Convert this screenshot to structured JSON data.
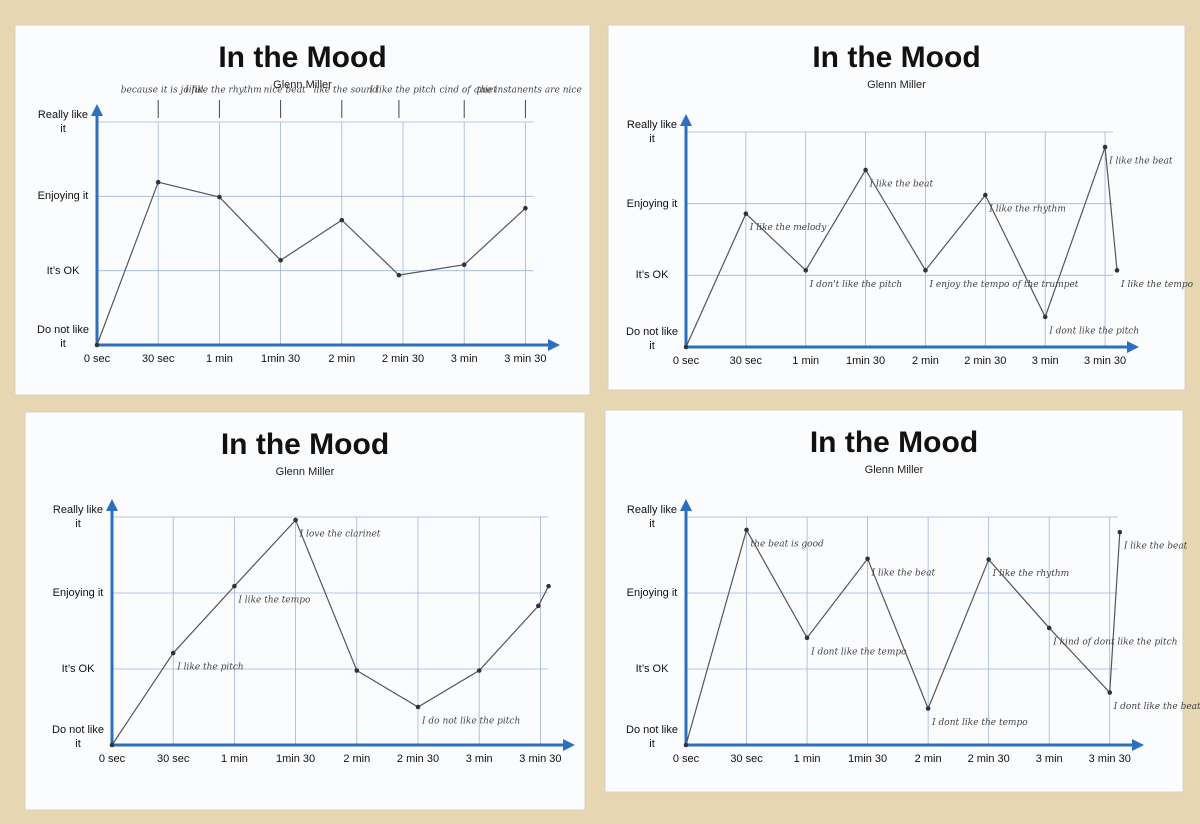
{
  "chart_data": [
    {
      "type": "line",
      "title": "In the Mood",
      "subtitle": "Glenn Miller",
      "color": "#555555",
      "grid": true,
      "x": [
        0,
        30,
        60,
        90,
        120,
        148,
        180,
        210
      ],
      "values": [
        0,
        2.19,
        1.99,
        1.14,
        1.68,
        0.94,
        1.08,
        1.84
      ],
      "notes": [
        null,
        "because it is joiful",
        "I like the rhythm",
        "nice beat",
        "like the sound",
        "I like the pitch",
        "cind of quiet",
        "the instanents are nice"
      ],
      "xlim": [
        0,
        225
      ],
      "xticks": [
        {
          "value": 0,
          "label": "0 sec"
        },
        {
          "value": 30,
          "label": "30 sec"
        },
        {
          "value": 60,
          "label": "1 min"
        },
        {
          "value": 90,
          "label": "1min 30"
        },
        {
          "value": 120,
          "label": "2 min"
        },
        {
          "value": 150,
          "label": "2 min 30"
        },
        {
          "value": 180,
          "label": "3 min"
        },
        {
          "value": 210,
          "label": "3 min 30"
        }
      ],
      "ylim": [
        0,
        3
      ],
      "yticks": [
        {
          "value": 0,
          "label": "Do not like it"
        },
        {
          "value": 1,
          "label": "It’s OK"
        },
        {
          "value": 2,
          "label": "Enjoying it"
        },
        {
          "value": 3,
          "label": "Really like it"
        }
      ]
    },
    {
      "type": "line",
      "title": "In the Mood",
      "subtitle": "Glenn Miller",
      "color": "#555555",
      "grid": true,
      "x": [
        0,
        30,
        60,
        90,
        120,
        150,
        180,
        210,
        216
      ],
      "values": [
        0,
        1.86,
        1.07,
        2.47,
        1.07,
        2.12,
        0.42,
        2.79,
        1.07
      ],
      "notes": [
        null,
        "I like the melody",
        "I don't like the pitch",
        "I like the beat",
        "I enjoy the tempo of the trumpet",
        "I like the rhythm",
        "I dont like the pitch",
        "I like the beat",
        "I like the tempo"
      ],
      "xlim": [
        0,
        225
      ],
      "xticks": [
        {
          "value": 0,
          "label": "0 sec"
        },
        {
          "value": 30,
          "label": "30 sec"
        },
        {
          "value": 60,
          "label": "1 min"
        },
        {
          "value": 90,
          "label": "1min 30"
        },
        {
          "value": 120,
          "label": "2 min"
        },
        {
          "value": 150,
          "label": "2 min 30"
        },
        {
          "value": 180,
          "label": "3 min"
        },
        {
          "value": 210,
          "label": "3 min 30"
        }
      ],
      "ylim": [
        0,
        3
      ],
      "yticks": [
        {
          "value": 0,
          "label": "Do not like it"
        },
        {
          "value": 1,
          "label": "It’s OK"
        },
        {
          "value": 2,
          "label": "Enjoying it"
        },
        {
          "value": 3,
          "label": "Really like it"
        }
      ]
    },
    {
      "type": "line",
      "title": "In the Mood",
      "subtitle": "Glenn Miller",
      "color": "#555555",
      "grid": true,
      "x": [
        0,
        30,
        60,
        90,
        120,
        150,
        180,
        209,
        214
      ],
      "values": [
        0,
        1.21,
        2.09,
        2.96,
        0.98,
        0.5,
        0.98,
        1.83,
        2.09
      ],
      "notes": [
        null,
        "I like the pitch",
        "I like the tempo",
        "I love the clarinet",
        null,
        "I do not like the pitch",
        null,
        null,
        null
      ],
      "xlim": [
        0,
        225
      ],
      "xticks": [
        {
          "value": 0,
          "label": "0 sec"
        },
        {
          "value": 30,
          "label": "30 sec"
        },
        {
          "value": 60,
          "label": "1 min"
        },
        {
          "value": 90,
          "label": "1min 30"
        },
        {
          "value": 120,
          "label": "2 min"
        },
        {
          "value": 150,
          "label": "2 min 30"
        },
        {
          "value": 180,
          "label": "3 min"
        },
        {
          "value": 210,
          "label": "3 min 30"
        }
      ],
      "ylim": [
        0,
        3
      ],
      "yticks": [
        {
          "value": 0,
          "label": "Do not like it"
        },
        {
          "value": 1,
          "label": "It’s OK"
        },
        {
          "value": 2,
          "label": "Enjoying it"
        },
        {
          "value": 3,
          "label": "Really like it"
        }
      ]
    },
    {
      "type": "line",
      "title": "In the Mood",
      "subtitle": "Glenn Miller",
      "color": "#555555",
      "grid": true,
      "x": [
        0,
        30,
        60,
        90,
        120,
        150,
        180,
        210,
        215
      ],
      "values": [
        0,
        2.83,
        1.41,
        2.45,
        0.48,
        2.44,
        1.54,
        0.69,
        2.8
      ],
      "notes": [
        null,
        "the beat is good",
        "I dont like the tempo",
        "I like the beat",
        "I dont like the tempo",
        "I like the rhythm",
        "I kind of dont like the pitch",
        "I dont like the beat",
        "I like the beat"
      ],
      "xlim": [
        0,
        225
      ],
      "xticks": [
        {
          "value": 0,
          "label": "0 sec"
        },
        {
          "value": 30,
          "label": "30 sec"
        },
        {
          "value": 60,
          "label": "1 min"
        },
        {
          "value": 90,
          "label": "1min 30"
        },
        {
          "value": 120,
          "label": "2 min"
        },
        {
          "value": 150,
          "label": "2 min 30"
        },
        {
          "value": 180,
          "label": "3 min"
        },
        {
          "value": 210,
          "label": "3 min 30"
        }
      ],
      "ylim": [
        0,
        3
      ],
      "yticks": [
        {
          "value": 0,
          "label": "Do not like it"
        },
        {
          "value": 1,
          "label": "It’s OK"
        },
        {
          "value": 2,
          "label": "Enjoying it"
        },
        {
          "value": 3,
          "label": "Really like it"
        }
      ]
    }
  ]
}
